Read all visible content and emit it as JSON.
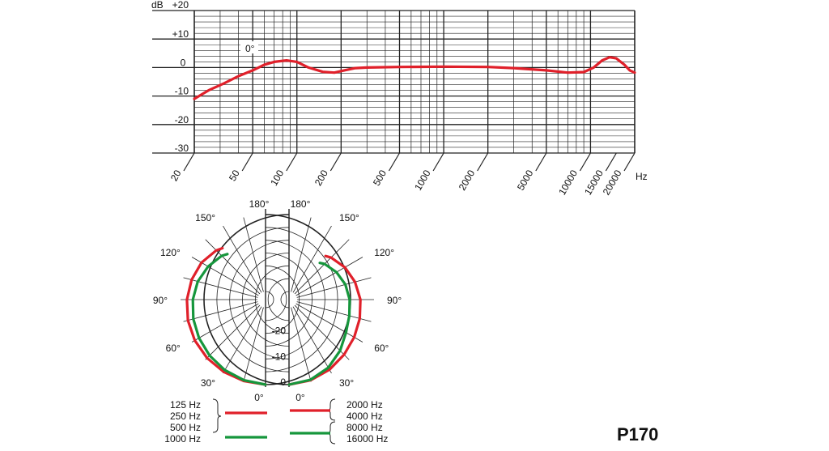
{
  "chart_data": [
    {
      "type": "line",
      "title": "",
      "ylabel": "dB",
      "xlabel": "Hz",
      "x_scale": "log",
      "xlim": [
        20,
        20000
      ],
      "ylim": [
        -30,
        20
      ],
      "grid": true,
      "y_ticks": [
        {
          "value": 20,
          "label": "+20"
        },
        {
          "value": 10,
          "label": "+10"
        },
        {
          "value": 0,
          "label": "0"
        },
        {
          "value": -10,
          "label": "-10"
        },
        {
          "value": -20,
          "label": "-20"
        },
        {
          "value": -30,
          "label": "-30"
        }
      ],
      "x_ticks": [
        {
          "value": 20,
          "label": "20"
        },
        {
          "value": 50,
          "label": "50"
        },
        {
          "value": 100,
          "label": "100"
        },
        {
          "value": 200,
          "label": "200"
        },
        {
          "value": 500,
          "label": "500"
        },
        {
          "value": 1000,
          "label": "1000"
        },
        {
          "value": 2000,
          "label": "2000"
        },
        {
          "value": 5000,
          "label": "5000"
        },
        {
          "value": 10000,
          "label": "10000"
        },
        {
          "value": 15000,
          "label": "15000"
        },
        {
          "value": 20000,
          "label": "20000"
        }
      ],
      "annotation": "0°",
      "series": [
        {
          "color": "#e0202a",
          "points": [
            [
              20,
              -11
            ],
            [
              25,
              -8
            ],
            [
              32,
              -5.5
            ],
            [
              40,
              -3
            ],
            [
              50,
              -1
            ],
            [
              60,
              1
            ],
            [
              70,
              2
            ],
            [
              85,
              2.5
            ],
            [
              100,
              2
            ],
            [
              120,
              0
            ],
            [
              150,
              -1.5
            ],
            [
              180,
              -1.8
            ],
            [
              210,
              -1
            ],
            [
              250,
              -0.2
            ],
            [
              300,
              0
            ],
            [
              500,
              0.2
            ],
            [
              1000,
              0.3
            ],
            [
              2000,
              0.2
            ],
            [
              3000,
              -0.2
            ],
            [
              5000,
              -1
            ],
            [
              7000,
              -1.8
            ],
            [
              9000,
              -1.6
            ],
            [
              10500,
              0
            ],
            [
              12000,
              2.5
            ],
            [
              13500,
              3.6
            ],
            [
              15000,
              3.2
            ],
            [
              17000,
              1
            ],
            [
              18500,
              -1
            ],
            [
              20000,
              -1.8
            ]
          ]
        }
      ]
    },
    {
      "type": "polar",
      "title": "",
      "angle_unit": "degrees",
      "r_unit": "dB",
      "rlim": [
        -30,
        0
      ],
      "r_ticks": [
        {
          "value": 0,
          "label": "0"
        },
        {
          "value": -10,
          "label": "-10"
        },
        {
          "value": -20,
          "label": "-20"
        }
      ],
      "angle_labels": [
        "0°",
        "30°",
        "60°",
        "90°",
        "120°",
        "150°",
        "180°"
      ],
      "left_half": {
        "legend": [
          "125 Hz",
          "250 Hz",
          "500 Hz",
          "1000 Hz"
        ],
        "series": [
          {
            "name": "125 Hz / 250 Hz / 500 Hz",
            "color": "#e0202a",
            "angles": [
              0,
              15,
              30,
              45,
              60,
              75,
              90,
              105,
              120,
              135,
              140
            ],
            "values": [
              0,
              -0.3,
              -0.6,
              -0.9,
              -1.3,
              -1.8,
              -2.5,
              -3.3,
              -4.3,
              -6,
              -7
            ]
          },
          {
            "name": "1000 Hz",
            "color": "#16963c",
            "angles": [
              0,
              15,
              30,
              45,
              60,
              75,
              90,
              105,
              120,
              135,
              140
            ],
            "values": [
              0,
              -0.6,
              -1.4,
              -2.3,
              -3.2,
              -4,
              -4.8,
              -5.8,
              -7.3,
              -9,
              -10
            ]
          }
        ]
      },
      "right_half": {
        "legend": [
          "2000 Hz",
          "4000 Hz",
          "8000 Hz",
          "16000 Hz"
        ],
        "series": [
          {
            "name": "2000 Hz / 4000 Hz",
            "color": "#e0202a",
            "angles": [
              0,
              15,
              30,
              45,
              60,
              75,
              90,
              105,
              120,
              135,
              140
            ],
            "values": [
              0,
              -0.6,
              -1.6,
              -2.8,
              -3.8,
              -4.6,
              -5.3,
              -6.5,
              -8,
              -10,
              -11
            ]
          },
          {
            "name": "8000 Hz / 16000 Hz",
            "color": "#16963c",
            "angles": [
              0,
              15,
              30,
              45,
              60,
              75,
              90,
              105,
              120,
              135,
              140
            ],
            "values": [
              0,
              -0.8,
              -2.5,
              -5,
              -7.5,
              -8.8,
              -9.5,
              -10.4,
              -11.8,
              -13.5,
              -14.5
            ]
          }
        ]
      }
    }
  ],
  "model": "P170"
}
